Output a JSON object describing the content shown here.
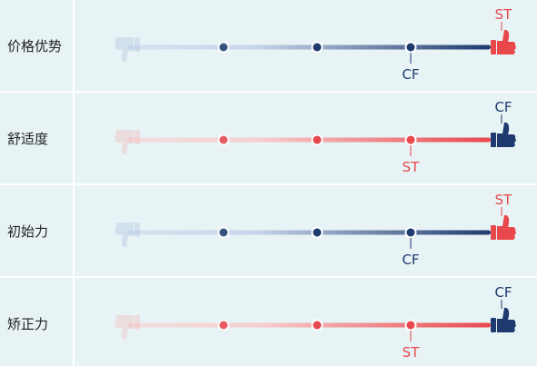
{
  "chart_data": {
    "type": "scale-comparison",
    "colors": {
      "navy": "#1e3a6e",
      "blue_light": "#c8d6ec",
      "red": "#e8474c",
      "red_light": "#f6d0d0",
      "row_bg": "#e8f3f5",
      "divider": "#ffffff"
    },
    "ends": {
      "low": "thumbs-down-icon",
      "high": "thumbs-up-icon"
    },
    "rows": [
      {
        "label": "价格优势",
        "line_color": "navy",
        "thumb_color": "red",
        "top_label": "ST",
        "top_label_color": "red",
        "marker_label": "CF",
        "marker_label_color": "navy",
        "marker_level": 3
      },
      {
        "label": "舒适度",
        "line_color": "red",
        "thumb_color": "navy",
        "top_label": "CF",
        "top_label_color": "navy",
        "marker_label": "ST",
        "marker_label_color": "red",
        "marker_level": 3
      },
      {
        "label": "初始力",
        "line_color": "navy",
        "thumb_color": "red",
        "top_label": "ST",
        "top_label_color": "red",
        "marker_label": "CF",
        "marker_label_color": "navy",
        "marker_level": 3
      },
      {
        "label": "矫正力",
        "line_color": "red",
        "thumb_color": "navy",
        "top_label": "CF",
        "top_label_color": "navy",
        "marker_label": "ST",
        "marker_label_color": "red",
        "marker_level": 3
      }
    ]
  }
}
